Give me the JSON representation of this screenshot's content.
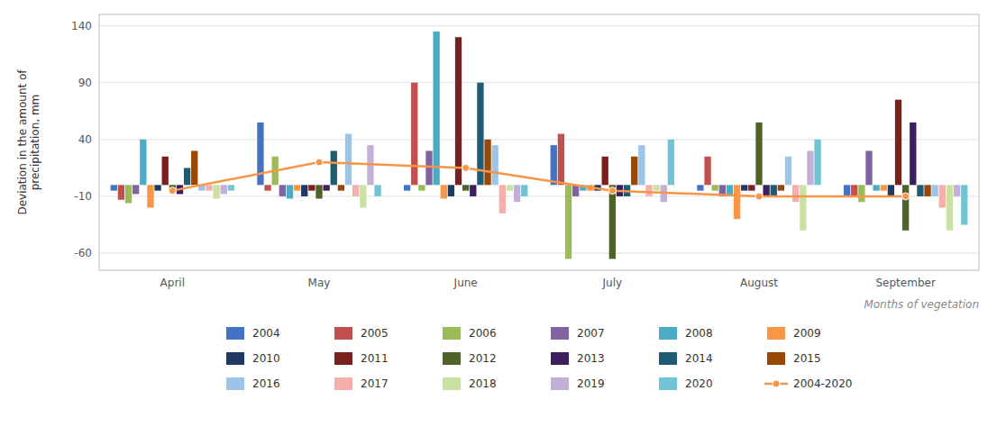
{
  "chart_data": {
    "type": "bar",
    "categories": [
      "April",
      "May",
      "June",
      "July",
      "August",
      "September"
    ],
    "series": [
      {
        "name": "2004",
        "color": "#4472C4",
        "values": [
          -5,
          55,
          -5,
          35,
          -5,
          -10
        ]
      },
      {
        "name": "2005",
        "color": "#C0504D",
        "values": [
          -13,
          -5,
          90,
          45,
          25,
          -10
        ]
      },
      {
        "name": "2006",
        "color": "#9BBB59",
        "values": [
          -16,
          25,
          -5,
          -65,
          -5,
          -15
        ]
      },
      {
        "name": "2007",
        "color": "#8064A2",
        "values": [
          -8,
          -10,
          30,
          -10,
          -10,
          30
        ]
      },
      {
        "name": "2008",
        "color": "#4BACC6",
        "values": [
          40,
          -12,
          135,
          -5,
          -10,
          -5
        ]
      },
      {
        "name": "2009",
        "color": "#F79646",
        "values": [
          -20,
          -5,
          -12,
          -5,
          -30,
          -5
        ]
      },
      {
        "name": "2010",
        "color": "#1F3864",
        "values": [
          -5,
          -10,
          -10,
          -5,
          -5,
          -10
        ]
      },
      {
        "name": "2011",
        "color": "#7B2020",
        "values": [
          25,
          -5,
          130,
          25,
          -5,
          75
        ]
      },
      {
        "name": "2012",
        "color": "#4F6228",
        "values": [
          -5,
          -12,
          -5,
          -65,
          55,
          -40
        ]
      },
      {
        "name": "2013",
        "color": "#3B1F5E",
        "values": [
          -8,
          -5,
          -10,
          -10,
          -10,
          55
        ]
      },
      {
        "name": "2014",
        "color": "#1F5C74",
        "values": [
          15,
          30,
          90,
          -10,
          -10,
          -10
        ]
      },
      {
        "name": "2015",
        "color": "#974706",
        "values": [
          30,
          -5,
          40,
          25,
          -5,
          -10
        ]
      },
      {
        "name": "2016",
        "color": "#9DC3E6",
        "values": [
          -5,
          45,
          35,
          35,
          25,
          -10
        ]
      },
      {
        "name": "2017",
        "color": "#F4AFAB",
        "values": [
          -5,
          -10,
          -25,
          -10,
          -15,
          -20
        ]
      },
      {
        "name": "2018",
        "color": "#C9E2A1",
        "values": [
          -12,
          -20,
          -5,
          -5,
          -40,
          -40
        ]
      },
      {
        "name": "2019",
        "color": "#C2B0D8",
        "values": [
          -8,
          35,
          -15,
          -15,
          30,
          -10
        ]
      },
      {
        "name": "2020",
        "color": "#70C4D5",
        "values": [
          -5,
          -10,
          -10,
          40,
          40,
          -35
        ]
      },
      {
        "name": "2004-2020",
        "type": "line",
        "color": "#F79646",
        "marker": "circle",
        "values": [
          -5,
          20,
          15,
          -5,
          -10,
          -10
        ]
      }
    ],
    "ylabel": "Deviation in the amount of\nprecipitation, mm",
    "xlabel": "Months of vegetation",
    "ylim": [
      -75,
      150
    ],
    "yticks": [
      -60,
      -10,
      40,
      90,
      140
    ],
    "grid": true,
    "legend": "bottom"
  }
}
